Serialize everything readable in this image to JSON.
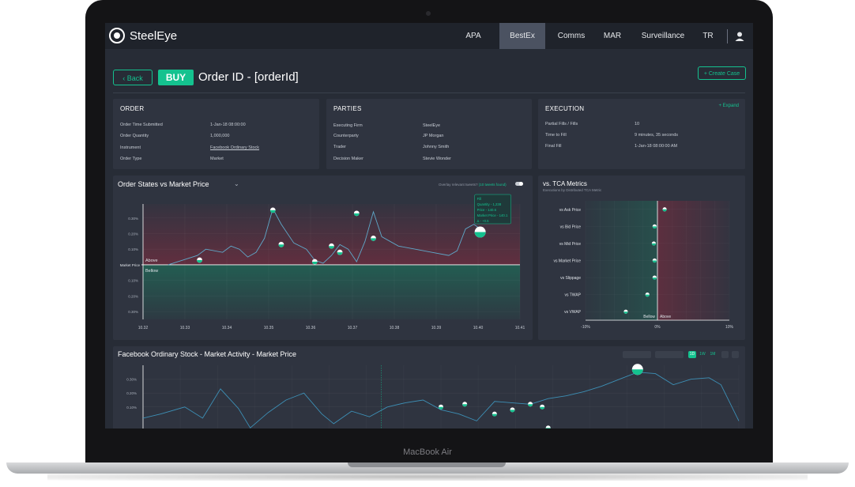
{
  "device": {
    "model_label": "MacBook Air"
  },
  "nav": {
    "logo": "SteelEye",
    "items": [
      {
        "label": "APA",
        "active": false
      },
      {
        "label": "BestEx",
        "active": true
      },
      {
        "label": "Comms",
        "active": false
      },
      {
        "label": "MAR",
        "active": false
      },
      {
        "label": "Surveillance",
        "active": false
      },
      {
        "label": "TR",
        "active": false
      }
    ]
  },
  "header": {
    "back_label": "Back",
    "side_badge": "BUY",
    "title": "Order ID - [orderId]",
    "create_case_label": "+ Create Case"
  },
  "order": {
    "title": "ORDER",
    "fields": [
      {
        "label": "Order Time Submitted",
        "value": "1-Jan-18 08:00:00"
      },
      {
        "label": "Order Quantity",
        "value": "1,000,000"
      },
      {
        "label": "Instrument",
        "value": "Facebook Ordinary Stock"
      },
      {
        "label": "Order Type",
        "value": "Market"
      }
    ]
  },
  "parties": {
    "title": "PARTIES",
    "fields": [
      {
        "label": "Executing Firm",
        "value": "SteelEye"
      },
      {
        "label": "Counterparty",
        "value": "JP Morgan"
      },
      {
        "label": "Trader",
        "value": "Johnny Smith"
      },
      {
        "label": "Decision Maker",
        "value": "Stevie Wonder"
      }
    ]
  },
  "execution": {
    "title": "EXECUTION",
    "expand_label": "+ Expand",
    "fields": [
      {
        "label": "Partial Fills / Fills",
        "value": "10"
      },
      {
        "label": "Time to Fill",
        "value": "9 minutes, 35 seconds"
      },
      {
        "label": "Final Fill",
        "value": "1-Jan-18 08:00:00 AM"
      }
    ]
  },
  "order_states": {
    "title": "Order States vs Market Price",
    "overlay_label": "Overlay relevant tweets?",
    "overlay_link": "(10 tweets found)",
    "tooltip": [
      "Fill",
      "Quantity - 1,238",
      "Price - 140.6",
      "Market Price - 140.1",
      "∆ - +0.5"
    ],
    "above_label": "Above",
    "below_label": "Bellow",
    "market_price_label": "Market Price",
    "y_ticks": [
      "0.30%",
      "0.20%",
      "0.10%",
      "0.10%",
      "0.20%",
      "0.30%"
    ],
    "x_ticks": [
      "10.32",
      "10.33",
      "10.34",
      "10.35",
      "10.36",
      "10.37",
      "10.38",
      "10.39",
      "10.40",
      "10.41"
    ]
  },
  "chart_data": [
    {
      "type": "line",
      "title": "Order States vs Market Price",
      "x": [
        10.326,
        10.333,
        10.335,
        10.339,
        10.341,
        10.343,
        10.345,
        10.347,
        10.349,
        10.351,
        10.353,
        10.356,
        10.359,
        10.361,
        10.363,
        10.365,
        10.367,
        10.369,
        10.371,
        10.373,
        10.375,
        10.377,
        10.381,
        10.385,
        10.389,
        10.393,
        10.395,
        10.397,
        10.399,
        10.401
      ],
      "y": [
        0.0,
        0.06,
        0.1,
        0.08,
        0.12,
        0.1,
        0.05,
        0.08,
        0.17,
        0.36,
        0.26,
        0.14,
        0.1,
        0.03,
        0.01,
        0.06,
        0.13,
        0.1,
        0.02,
        0.15,
        0.34,
        0.18,
        0.12,
        0.1,
        0.08,
        0.06,
        0.09,
        0.23,
        0.26,
        0.22
      ],
      "fills": [
        {
          "x": 10.3335,
          "y": 0.03
        },
        {
          "x": 10.351,
          "y": 0.35
        },
        {
          "x": 10.353,
          "y": 0.13
        },
        {
          "x": 10.361,
          "y": 0.02
        },
        {
          "x": 10.365,
          "y": 0.12
        },
        {
          "x": 10.367,
          "y": 0.08
        },
        {
          "x": 10.371,
          "y": 0.33
        },
        {
          "x": 10.375,
          "y": 0.17
        },
        {
          "x": 10.4005,
          "y": 0.21
        }
      ],
      "xlim": [
        10.32,
        10.41
      ],
      "ylim": [
        -0.35,
        0.39
      ]
    },
    {
      "type": "scatter",
      "title": "vs. TCA Metrics",
      "categories": [
        "vs Ask Price",
        "vs Bid Price",
        "vs Mid Price",
        "vs Market Price",
        "vs Slippage",
        "vs TWAP",
        "vs VWAP"
      ],
      "values": [
        1.0,
        -0.4,
        -0.5,
        -0.4,
        -0.4,
        -1.4,
        -4.4
      ],
      "xlim": [
        -10,
        10
      ]
    },
    {
      "type": "line",
      "title": "Facebook Ordinary Stock - Market Activity - Market Price",
      "x": [
        0,
        3,
        7,
        10,
        13,
        16,
        18,
        21,
        24,
        27,
        30,
        32,
        35,
        38,
        41,
        44,
        47,
        50,
        53,
        56,
        59,
        62,
        65,
        68,
        71,
        74,
        77,
        80,
        83,
        86,
        89,
        92,
        95,
        97,
        100
      ],
      "y": [
        0.02,
        0.05,
        0.1,
        0.02,
        0.23,
        0.09,
        -0.05,
        0.06,
        0.15,
        0.2,
        0.05,
        -0.02,
        0.07,
        0.03,
        0.1,
        0.13,
        0.15,
        0.08,
        0.05,
        0.0,
        0.14,
        0.13,
        0.12,
        0.16,
        0.18,
        0.21,
        0.25,
        0.3,
        0.35,
        0.34,
        0.26,
        0.3,
        0.31,
        0.26,
        0.0
      ],
      "xlim": [
        0,
        100
      ],
      "ylim": [
        -0.1,
        0.4
      ]
    }
  ],
  "tca": {
    "title": "vs. TCA Metrics",
    "subtitle": "Executions by Distributed TCA Metric",
    "x_ticks": [
      "-10%",
      "0%",
      "10%"
    ],
    "below_label": "Bellow",
    "above_label": "Above"
  },
  "market": {
    "title": "Facebook Ordinary Stock - Market Activity - Market Price",
    "range_buttons": [
      "1D",
      "1W",
      "1M"
    ],
    "y_ticks": [
      "0.30%",
      "0.20%",
      "0.10%"
    ]
  },
  "colors": {
    "accent": "#14c28f",
    "panel": "#2f3440",
    "background": "#272c36"
  }
}
